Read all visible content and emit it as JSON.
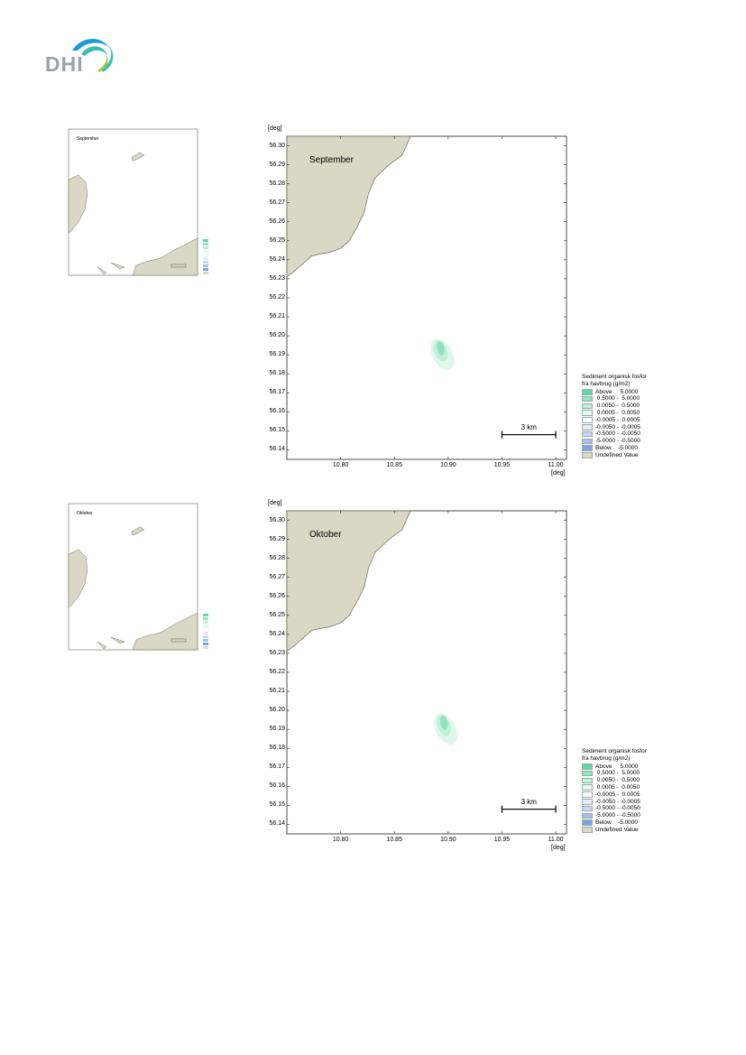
{
  "logo": {
    "text": "DHI",
    "colors": [
      "#1e9bd7",
      "#3cbfae",
      "#9ccb3b"
    ]
  },
  "colors": {
    "land": "#d9d8c4",
    "land_edge": "#6b6b5a",
    "plume_light": "#dff7ec",
    "plume_mid": "#bff0d8",
    "plume_dark": "#8fe3c2"
  },
  "maps": [
    {
      "month": "September",
      "y_unit": "[deg]",
      "x_unit": "[deg]",
      "y_ticks": [
        "56.30",
        "56.29",
        "56.28",
        "56.27",
        "56.26",
        "56.25",
        "56.24",
        "56.23",
        "56.22",
        "56.21",
        "56.20",
        "56.19",
        "56.18",
        "56.17",
        "56.16",
        "56.15",
        "56.14"
      ],
      "x_ticks": [
        "10.80",
        "10.85",
        "10.90",
        "10.95",
        "11.00"
      ],
      "scale_bar": "3 km",
      "legend_title_line1": "Sediment organisk fosfor",
      "legend_title_line2": "fra havbrug (g/m2)",
      "plume_center": {
        "lon": 10.893,
        "lat": 56.193
      }
    },
    {
      "month": "Oktober",
      "y_unit": "[deg]",
      "x_unit": "[deg]",
      "y_ticks": [
        "56.30",
        "56.29",
        "56.28",
        "56.27",
        "56.26",
        "56.25",
        "56.24",
        "56.23",
        "56.22",
        "56.21",
        "56.20",
        "56.19",
        "56.18",
        "56.17",
        "56.16",
        "56.15",
        "56.14"
      ],
      "x_ticks": [
        "10.80",
        "10.85",
        "10.90",
        "10.95",
        "11.00"
      ],
      "scale_bar": "3 km",
      "legend_title_line1": "Sediment organisk fosfor",
      "legend_title_line2": "fra havbrug (g/m2)",
      "plume_center": {
        "lon": 10.896,
        "lat": 56.193
      }
    }
  ],
  "legend": [
    {
      "label": "Above     5.0000",
      "color": "#5fd9a6"
    },
    {
      "label": " 0.5000 -  5.0000",
      "color": "#8fe6c0"
    },
    {
      "label": " 0.0050 -  0.5000",
      "color": "#bdf2d9"
    },
    {
      "label": " 0.0005 -  0.0050",
      "color": "#e3faef"
    },
    {
      "label": "-0.0005 -  0.0005",
      "color": "#ffffff"
    },
    {
      "label": "-0.0050 - -0.0005",
      "color": "#e2ebfa"
    },
    {
      "label": "-0.5000 - -0.0050",
      "color": "#c6d7f4"
    },
    {
      "label": "-5.0000 - -0.5000",
      "color": "#a6c0ee"
    },
    {
      "label": "Below    -5.0000",
      "color": "#7aa3e6"
    },
    {
      "label": "Undefined Value",
      "color": "#d9d8c4"
    }
  ]
}
